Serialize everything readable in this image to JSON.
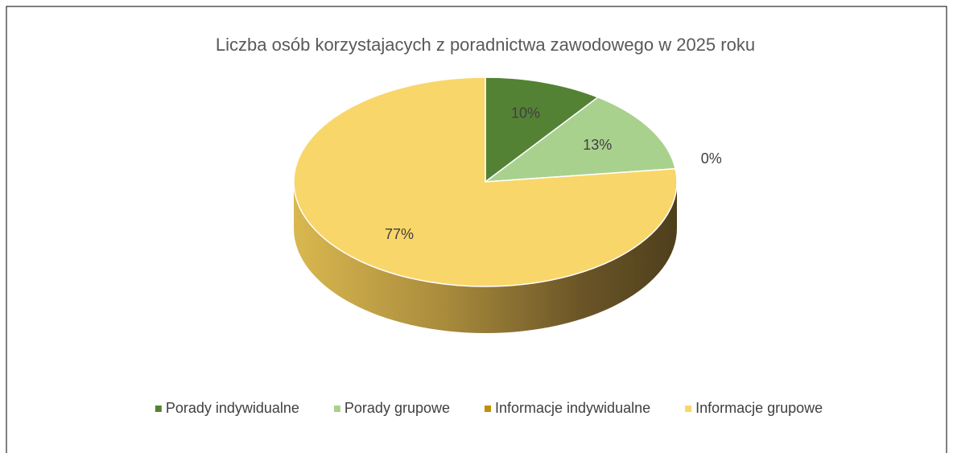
{
  "chart_data": {
    "type": "pie",
    "title": "Liczba osób korzystajacych z poradnictwa zawodowego w 2025 roku",
    "categories": [
      "Porady indywidualne",
      "Porady grupowe",
      "Informacje indywidualne",
      "Informacje grupowe"
    ],
    "values": [
      10,
      13,
      0,
      77
    ],
    "value_labels": [
      "10%",
      "13%",
      "0%",
      "77%"
    ],
    "colors": [
      "#548235",
      "#a9d18e",
      "#bf9000",
      "#f9d66a"
    ],
    "legend": "bottom"
  }
}
